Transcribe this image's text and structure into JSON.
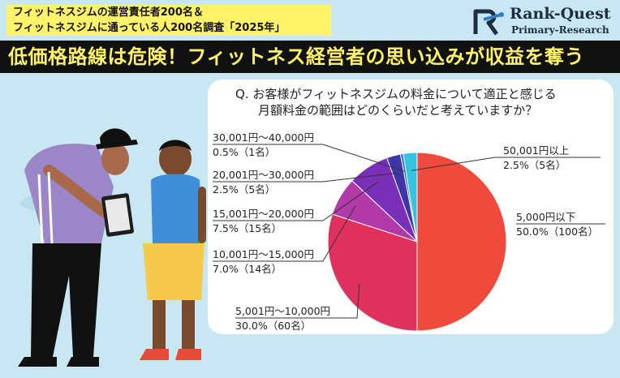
{
  "banner": {
    "line1": "フィットネスジムの運営責任者200名＆",
    "line2": "フィットネスジムに通っている人200名調査「2025年」"
  },
  "brand": {
    "name": "Rank-Quest",
    "subtitle": "Primary-Research",
    "colors": {
      "navy": "#1d2d44",
      "accent": "#2b7fc1"
    }
  },
  "headline": "低価格路線は危険！フィットネス経営者の思い込みが収益を奪う",
  "chart_data": {
    "type": "pie",
    "title": "Q. お客様がフィットネスジムの料金について適正と感じる月額料金の範囲はどのくらいだと考えていますか？",
    "title_line1": "Q. お客様がフィットネスジムの料金について適正と感じる",
    "title_line2": "月額料金の範囲はどのくらいだと考えていますか？",
    "slices": [
      {
        "label": "5,000円以下",
        "value": 50.0,
        "pct_text": "50.0%",
        "count_text": "（100名）",
        "color": "#f04a3c"
      },
      {
        "label": "5,001円～10,000円",
        "value": 30.0,
        "pct_text": "30.0%",
        "count_text": "（60名）",
        "color": "#e0305e"
      },
      {
        "label": "10,001円～15,000円",
        "value": 7.0,
        "pct_text": "7.0%",
        "count_text": "（14名）",
        "color": "#b13aa8"
      },
      {
        "label": "15,001円～20,000円",
        "value": 7.5,
        "pct_text": "7.5%",
        "count_text": "（15名）",
        "color": "#7a2fb8"
      },
      {
        "label": "20,001円～30,000円",
        "value": 2.5,
        "pct_text": "2.5%",
        "count_text": "（5名）",
        "color": "#3d35a8"
      },
      {
        "label": "30,001円～40,000円",
        "value": 0.5,
        "pct_text": "0.5%",
        "count_text": "（1名）",
        "color": "#2f6fd6"
      },
      {
        "label": "50,001円以上",
        "value": 2.5,
        "pct_text": "2.5%",
        "count_text": "（5名）",
        "color": "#35c3df"
      }
    ]
  }
}
